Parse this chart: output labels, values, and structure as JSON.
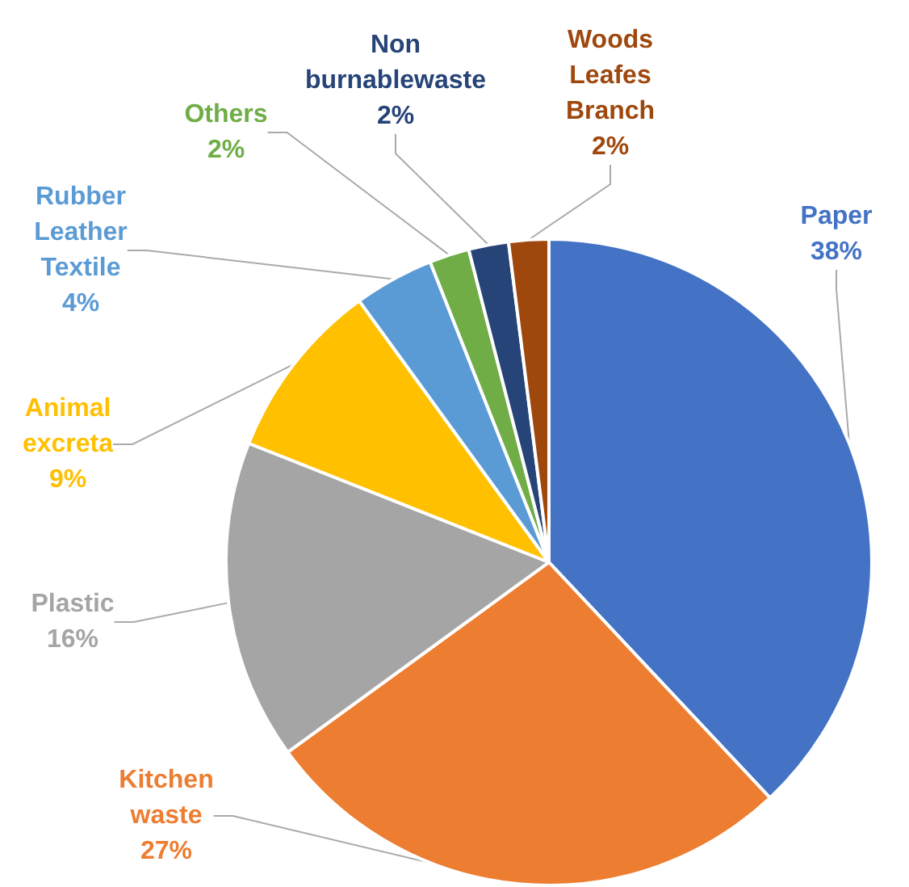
{
  "chart_data": {
    "type": "pie",
    "categories": [
      "Paper",
      "Kitchen waste",
      "Plastic",
      "Animal excreta",
      "Rubber Leather Textile",
      "Others",
      "Non burnablewaste",
      "Woods Leafes Branch"
    ],
    "values": [
      38,
      27,
      16,
      9,
      4,
      2,
      2,
      2
    ],
    "value_labels": [
      "38%",
      "27%",
      "16%",
      "9%",
      "4%",
      "2%",
      "2%",
      "2%"
    ],
    "colors": [
      "#4472c4",
      "#ed7d31",
      "#a5a5a5",
      "#ffc000",
      "#5b9bd5",
      "#70ad47",
      "#264478",
      "#9e480e"
    ],
    "legend": false
  }
}
